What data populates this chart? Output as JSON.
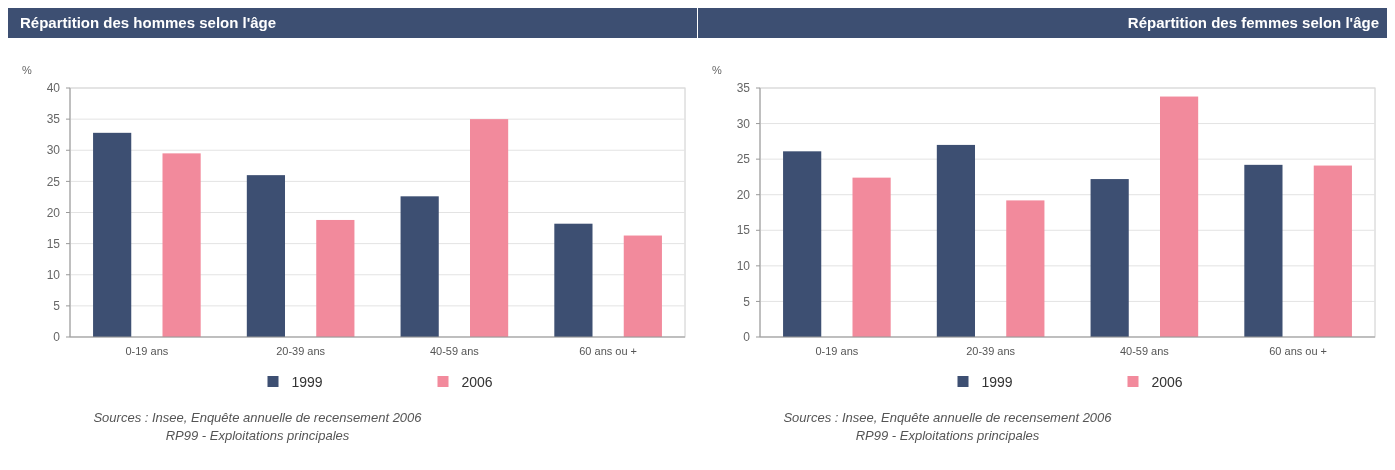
{
  "chart_data": [
    {
      "type": "bar",
      "title": "Répartition des hommes selon l'âge",
      "ylabel": "%",
      "categories": [
        "0-19 ans",
        "20-39 ans",
        "40-59 ans",
        "60 ans ou +"
      ],
      "series": [
        {
          "name": "1999",
          "color": "#3d4f72",
          "values": [
            32.8,
            26.0,
            22.6,
            18.2
          ]
        },
        {
          "name": "2006",
          "color": "#f28a9c",
          "values": [
            29.5,
            18.8,
            35.0,
            16.3
          ]
        }
      ],
      "ylim": [
        0,
        40
      ],
      "yticks": [
        0,
        5,
        10,
        15,
        20,
        25,
        30,
        35,
        40
      ],
      "grid": "y",
      "legend": "bottom",
      "annotations": [
        "Sources : Insee, Enquête annuelle de recensement 2006",
        "RP99 - Exploitations principales"
      ]
    },
    {
      "type": "bar",
      "title": "Répartition des femmes selon l'âge",
      "ylabel": "%",
      "categories": [
        "0-19 ans",
        "20-39 ans",
        "40-59 ans",
        "60 ans ou +"
      ],
      "series": [
        {
          "name": "1999",
          "color": "#3d4f72",
          "values": [
            26.1,
            27.0,
            22.2,
            24.2
          ]
        },
        {
          "name": "2006",
          "color": "#f28a9c",
          "values": [
            22.4,
            19.2,
            33.8,
            24.1
          ]
        }
      ],
      "ylim": [
        0,
        35
      ],
      "yticks": [
        0,
        5,
        10,
        15,
        20,
        25,
        30,
        35
      ],
      "grid": "y",
      "legend": "bottom",
      "annotations": [
        "Sources : Insee, Enquête annuelle de recensement 2006",
        "RP99 - Exploitations principales"
      ]
    }
  ]
}
